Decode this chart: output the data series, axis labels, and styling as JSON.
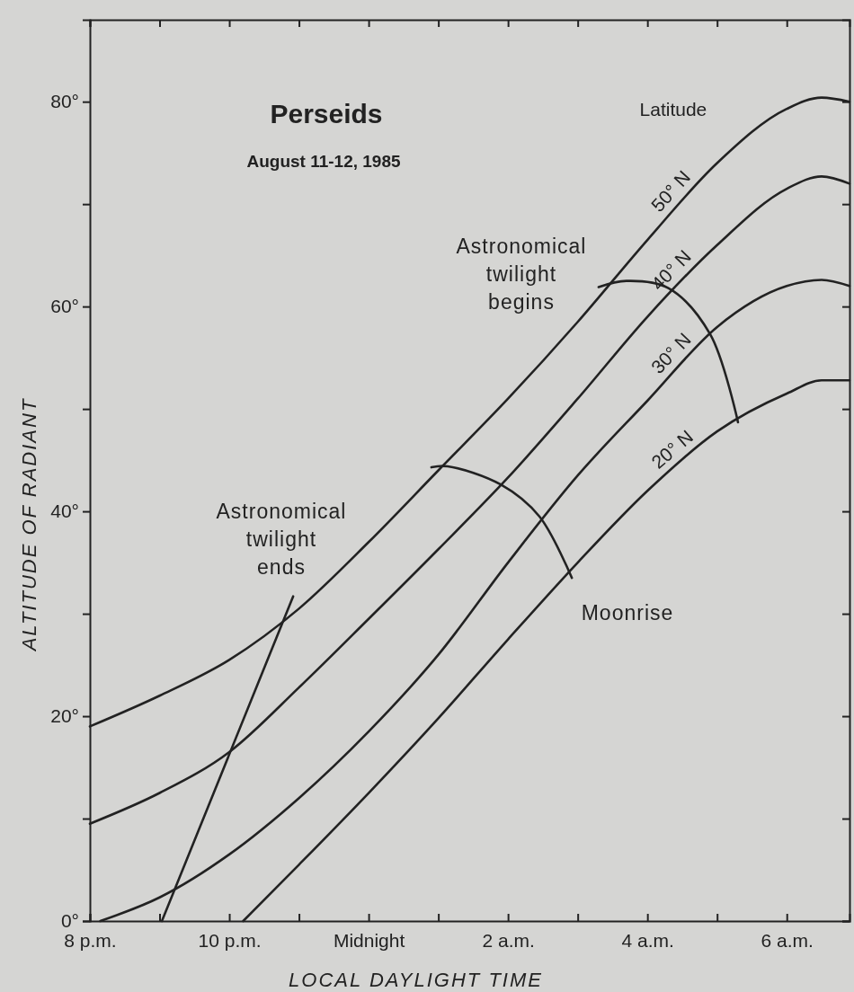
{
  "chart_data": {
    "type": "line",
    "title": "Perseids",
    "subtitle": "August 11-12, 1985",
    "xlabel": "LOCAL DAYLIGHT TIME",
    "ylabel": "ALTITUDE OF RADIANT",
    "legend_title": "Latitude",
    "xlim": [
      "1985-08-11T20:00",
      "1985-08-12T06:54"
    ],
    "ylim": [
      0,
      88
    ],
    "xticks": [
      {
        "value": "1985-08-11T20:00",
        "label": "8 p.m."
      },
      {
        "value": "1985-08-11T21:00",
        "label": null
      },
      {
        "value": "1985-08-11T22:00",
        "label": "10 p.m."
      },
      {
        "value": "1985-08-11T23:00",
        "label": null
      },
      {
        "value": "1985-08-12T00:00",
        "label": "Midnight"
      },
      {
        "value": "1985-08-12T01:00",
        "label": null
      },
      {
        "value": "1985-08-12T02:00",
        "label": "2 a.m."
      },
      {
        "value": "1985-08-12T03:00",
        "label": null
      },
      {
        "value": "1985-08-12T04:00",
        "label": "4 a.m."
      },
      {
        "value": "1985-08-12T05:00",
        "label": null
      },
      {
        "value": "1985-08-12T06:00",
        "label": "6 a.m."
      }
    ],
    "yticks": [
      {
        "value": 0,
        "label": "0°"
      },
      {
        "value": 10,
        "label": null
      },
      {
        "value": 20,
        "label": "20°"
      },
      {
        "value": 30,
        "label": null
      },
      {
        "value": 40,
        "label": "40°"
      },
      {
        "value": 50,
        "label": null
      },
      {
        "value": 60,
        "label": "60°"
      },
      {
        "value": 70,
        "label": null
      },
      {
        "value": 80,
        "label": "80°"
      }
    ],
    "grid": false,
    "marker": "none",
    "line_style": "solid",
    "series": [
      {
        "name": "50° N",
        "color": "#222222",
        "x": [
          "1985-08-11T20:00",
          "1985-08-11T21:00",
          "1985-08-11T22:00",
          "1985-08-11T23:00",
          "1985-08-12T00:00",
          "1985-08-12T01:00",
          "1985-08-12T02:00",
          "1985-08-12T03:00",
          "1985-08-12T04:00",
          "1985-08-12T05:00",
          "1985-08-12T06:00",
          "1985-08-12T06:30",
          "1985-08-12T06:54"
        ],
        "values": [
          19,
          22,
          25.5,
          30.5,
          37,
          44,
          51,
          58.5,
          66.5,
          74,
          79.3,
          80.4,
          80
        ]
      },
      {
        "name": "40° N",
        "color": "#222222",
        "x": [
          "1985-08-11T20:00",
          "1985-08-11T21:00",
          "1985-08-11T22:00",
          "1985-08-11T23:00",
          "1985-08-12T00:00",
          "1985-08-12T01:00",
          "1985-08-12T02:00",
          "1985-08-12T03:00",
          "1985-08-12T04:00",
          "1985-08-12T05:00",
          "1985-08-12T06:00",
          "1985-08-12T06:30",
          "1985-08-12T06:54"
        ],
        "values": [
          9.5,
          12.5,
          16.5,
          22.8,
          29.5,
          36.3,
          43.3,
          51,
          59,
          66,
          71.5,
          72.7,
          72
        ]
      },
      {
        "name": "30° N",
        "color": "#222222",
        "x": [
          "1985-08-11T20:09",
          "1985-08-11T21:00",
          "1985-08-11T22:00",
          "1985-08-11T23:00",
          "1985-08-12T00:00",
          "1985-08-12T01:00",
          "1985-08-12T02:00",
          "1985-08-12T03:00",
          "1985-08-12T04:00",
          "1985-08-12T05:00",
          "1985-08-12T06:00",
          "1985-08-12T06:30",
          "1985-08-12T06:54"
        ],
        "values": [
          0,
          2.3,
          6.5,
          12,
          18.5,
          26,
          35,
          43.5,
          50.8,
          58,
          62,
          62.6,
          62
        ]
      },
      {
        "name": "20° N",
        "color": "#222222",
        "x": [
          "1985-08-11T22:12",
          "1985-08-11T23:00",
          "1985-08-12T00:00",
          "1985-08-12T01:00",
          "1985-08-12T02:00",
          "1985-08-12T03:00",
          "1985-08-12T04:00",
          "1985-08-12T05:00",
          "1985-08-12T06:00",
          "1985-08-12T06:30",
          "1985-08-12T06:54"
        ],
        "values": [
          0,
          5.5,
          12.5,
          19.8,
          27.5,
          35,
          42,
          47.8,
          51.5,
          52.8,
          52.8
        ]
      },
      {
        "color": "#222222",
        "x": [
          "1985-08-11T21:02",
          "1985-08-11T22:55"
        ],
        "values": [
          0,
          31.7
        ]
      },
      {
        "color": "#222222",
        "x": [
          "1985-08-12T03:18",
          "1985-08-12T03:42",
          "1985-08-12T04:18",
          "1985-08-12T04:54",
          "1985-08-12T05:18"
        ],
        "values": [
          61.9,
          62.5,
          61.8,
          57.3,
          48.7
        ]
      },
      {
        "color": "#222222",
        "x": [
          "1985-08-12T00:54",
          "1985-08-12T01:08",
          "1985-08-12T01:54",
          "1985-08-12T02:27",
          "1985-08-12T02:55"
        ],
        "values": [
          44.3,
          44.4,
          42.6,
          39.5,
          33.5
        ]
      }
    ],
    "annotations": [
      "Astronomical\ntwilight\nends",
      "Astronomical\ntwilight\nbegins",
      "Moonrise"
    ]
  }
}
